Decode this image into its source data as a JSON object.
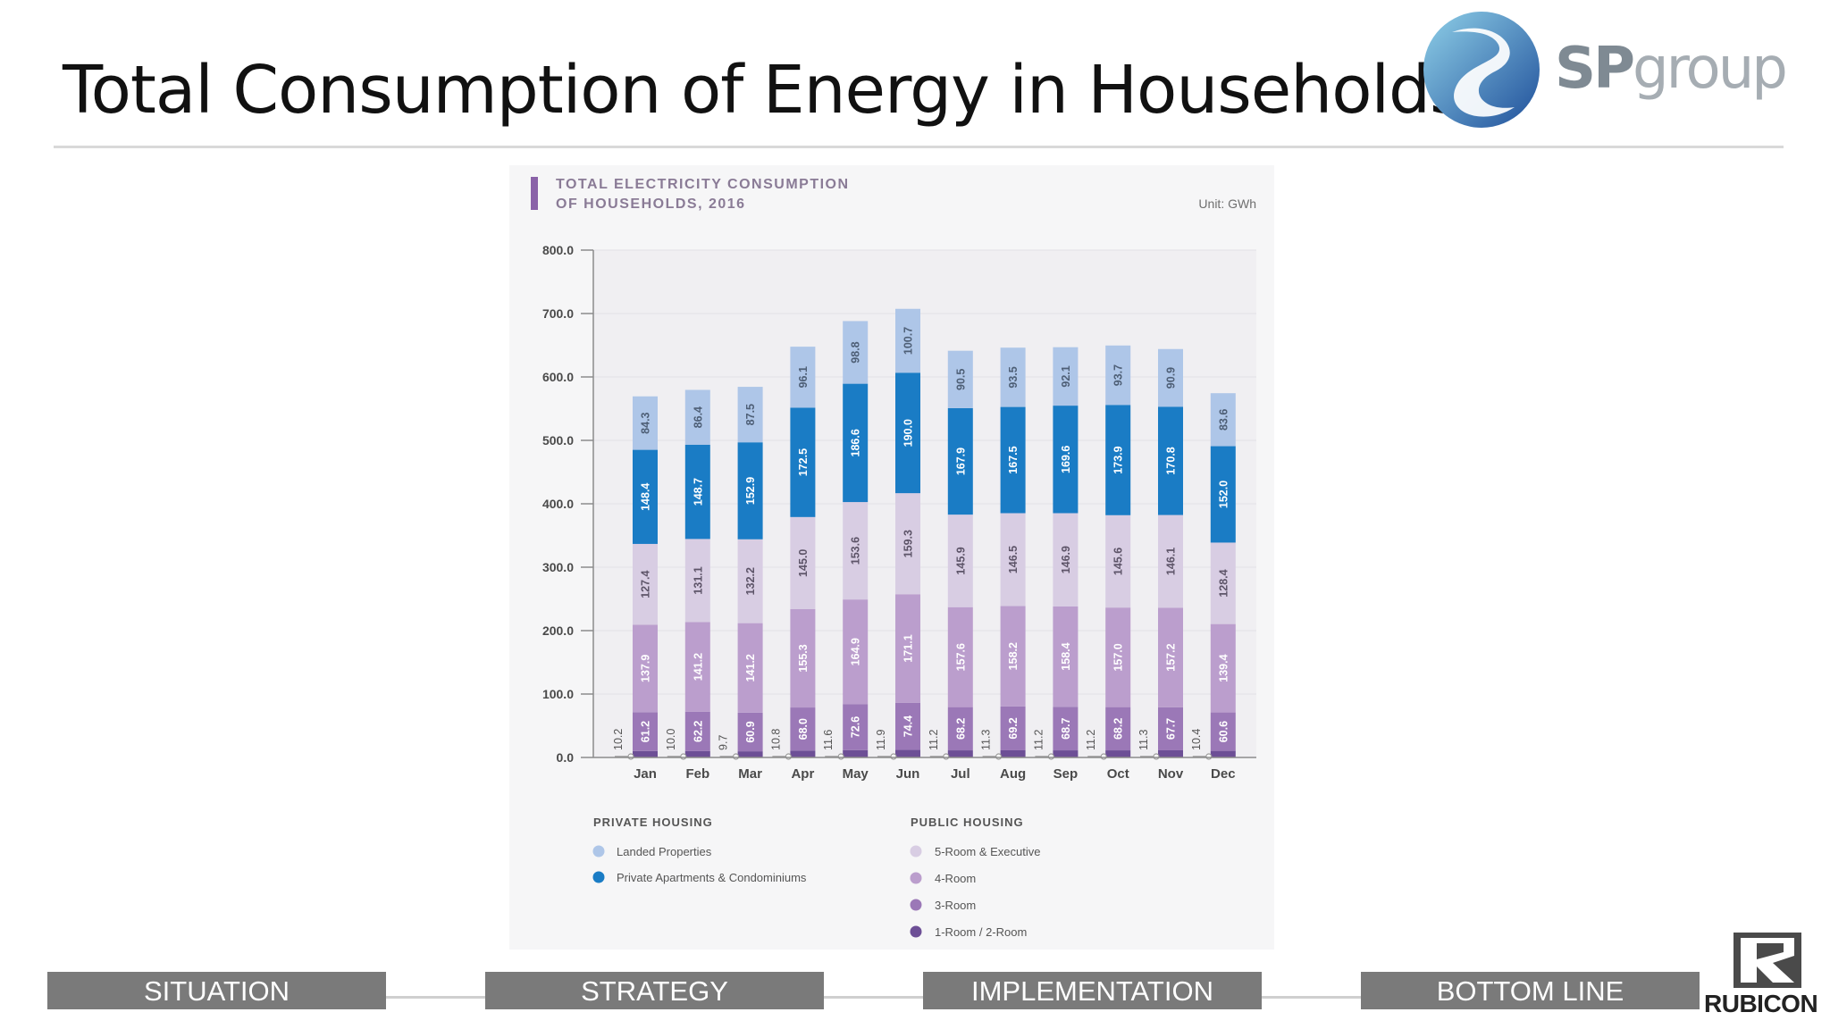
{
  "slide": {
    "title": "Total Consumption of Energy in Households"
  },
  "logos": {
    "sp_prefix": "SP",
    "sp_suffix": "group",
    "rubicon": "RUBICON"
  },
  "nav": {
    "items": [
      "SITUATION",
      "STRATEGY",
      "IMPLEMENTATION",
      "BOTTOM LINE"
    ]
  },
  "colors": {
    "landed": "#aec6e8",
    "private_apts": "#1a7cc5",
    "five_room": "#d8cde3",
    "four_room": "#bb9ecd",
    "three_room": "#9b78b7",
    "one_two_room": "#6d4f96",
    "nav": "#7a7a7a",
    "title_bar": "#8a62a8"
  },
  "chart_data": {
    "type": "bar",
    "stacked": true,
    "title_line1": "TOTAL ELECTRICITY CONSUMPTION",
    "title_line2": "OF HOUSEHOLDS, 2016",
    "unit_label": "Unit: GWh",
    "categories": [
      "Jan",
      "Feb",
      "Mar",
      "Apr",
      "May",
      "Jun",
      "Jul",
      "Aug",
      "Sep",
      "Oct",
      "Nov",
      "Dec"
    ],
    "ylim": [
      0,
      800
    ],
    "yticks": [
      "0.0",
      "100.0",
      "200.0",
      "300.0",
      "400.0",
      "500.0",
      "600.0",
      "700.0",
      "800.0"
    ],
    "series": [
      {
        "name": "1-Room / 2-Room",
        "color_key": "one_two_room",
        "group": "PUBLIC HOUSING",
        "values": [
          10.2,
          10.0,
          9.7,
          10.8,
          11.6,
          11.9,
          11.2,
          11.3,
          11.2,
          11.2,
          11.3,
          10.4
        ]
      },
      {
        "name": "3-Room",
        "color_key": "three_room",
        "group": "PUBLIC HOUSING",
        "values": [
          61.2,
          62.2,
          60.9,
          68.0,
          72.6,
          74.4,
          68.2,
          69.2,
          68.7,
          68.2,
          67.7,
          60.6
        ]
      },
      {
        "name": "4-Room",
        "color_key": "four_room",
        "group": "PUBLIC HOUSING",
        "values": [
          137.9,
          141.2,
          141.2,
          155.3,
          164.9,
          171.1,
          157.6,
          158.2,
          158.4,
          157.0,
          157.2,
          139.4
        ]
      },
      {
        "name": "5-Room & Executive",
        "color_key": "five_room",
        "group": "PUBLIC HOUSING",
        "values": [
          127.4,
          131.1,
          132.2,
          145.0,
          153.6,
          159.3,
          145.9,
          146.5,
          146.9,
          145.6,
          146.1,
          128.4
        ]
      },
      {
        "name": "Private Apartments & Condominiums",
        "color_key": "private_apts",
        "group": "PRIVATE HOUSING",
        "values": [
          148.4,
          148.7,
          152.9,
          172.5,
          186.6,
          190.0,
          167.9,
          167.5,
          169.6,
          173.9,
          170.8,
          152.0
        ]
      },
      {
        "name": "Landed Properties",
        "color_key": "landed",
        "group": "PRIVATE HOUSING",
        "values": [
          84.3,
          86.4,
          87.5,
          96.1,
          98.8,
          100.7,
          90.5,
          93.5,
          92.1,
          93.7,
          90.9,
          83.6
        ]
      }
    ],
    "legend": {
      "private_heading": "PRIVATE HOUSING",
      "public_heading": "PUBLIC HOUSING",
      "private_items": [
        {
          "label": "Landed Properties",
          "color_key": "landed"
        },
        {
          "label": "Private Apartments & Condominiums",
          "color_key": "private_apts"
        }
      ],
      "public_items": [
        {
          "label": "5-Room & Executive",
          "color_key": "five_room"
        },
        {
          "label": "4-Room",
          "color_key": "four_room"
        },
        {
          "label": "3-Room",
          "color_key": "three_room"
        },
        {
          "label": "1-Room / 2-Room",
          "color_key": "one_two_room"
        }
      ]
    }
  }
}
